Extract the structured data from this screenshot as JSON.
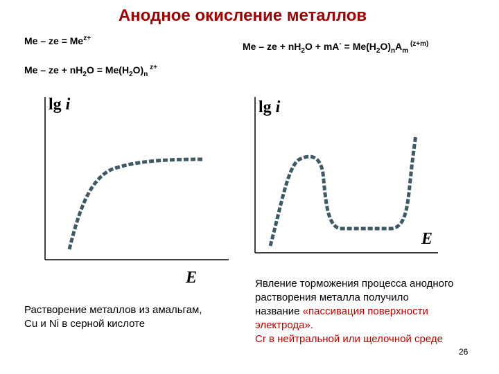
{
  "title": "Анодное окисление металлов",
  "equations": [
    [
      {
        "text": "Me – ze = Me"
      },
      {
        "text": "z+",
        "style": "sup"
      }
    ],
    [
      {
        "text": "Me – ze + nH"
      },
      {
        "text": "2",
        "style": "sub"
      },
      {
        "text": "O + mA"
      },
      {
        "text": "-",
        "style": "sup"
      },
      {
        "text": " = Me(H"
      },
      {
        "text": "2",
        "style": "sub"
      },
      {
        "text": "O)"
      },
      {
        "text": "n",
        "style": "sub"
      },
      {
        "text": "A"
      },
      {
        "text": "m",
        "style": "sub"
      },
      {
        "text": " (z+m)",
        "style": "sup"
      }
    ],
    [
      {
        "text": "Me – ze + nH"
      },
      {
        "text": "2",
        "style": "sub"
      },
      {
        "text": "O = Me(H"
      },
      {
        "text": "2",
        "style": "sub"
      },
      {
        "text": "O)"
      },
      {
        "text": "n",
        "style": "sub"
      },
      {
        "text": " z+",
        "style": "sup"
      }
    ]
  ],
  "left_plot": {
    "y_label": {
      "lg": "lg",
      "var": "i"
    },
    "x_label": "E"
  },
  "right_plot": {
    "y_label": {
      "lg": "lg",
      "var": "i"
    },
    "x_label": "E"
  },
  "left_caption": [
    "Растворение металлов из амальгам,",
    "Cu и Ni в серной кислоте"
  ],
  "right_caption": [
    [
      {
        "text": "Явление торможения процесса анодного",
        "color": "#000000"
      }
    ],
    [
      {
        "text": "растворения металла  получило",
        "color": "#000000"
      }
    ],
    [
      {
        "text": "название ",
        "color": "#000000"
      },
      {
        "text": "«пассивация поверхности",
        "color": "#c00000"
      }
    ],
    [
      {
        "text": "электрода».",
        "color": "#c00000"
      }
    ],
    [
      {
        "text": "Cr в нейтральной или щелочной среде",
        "color": "#c00000"
      }
    ]
  ],
  "page_number": "26"
}
